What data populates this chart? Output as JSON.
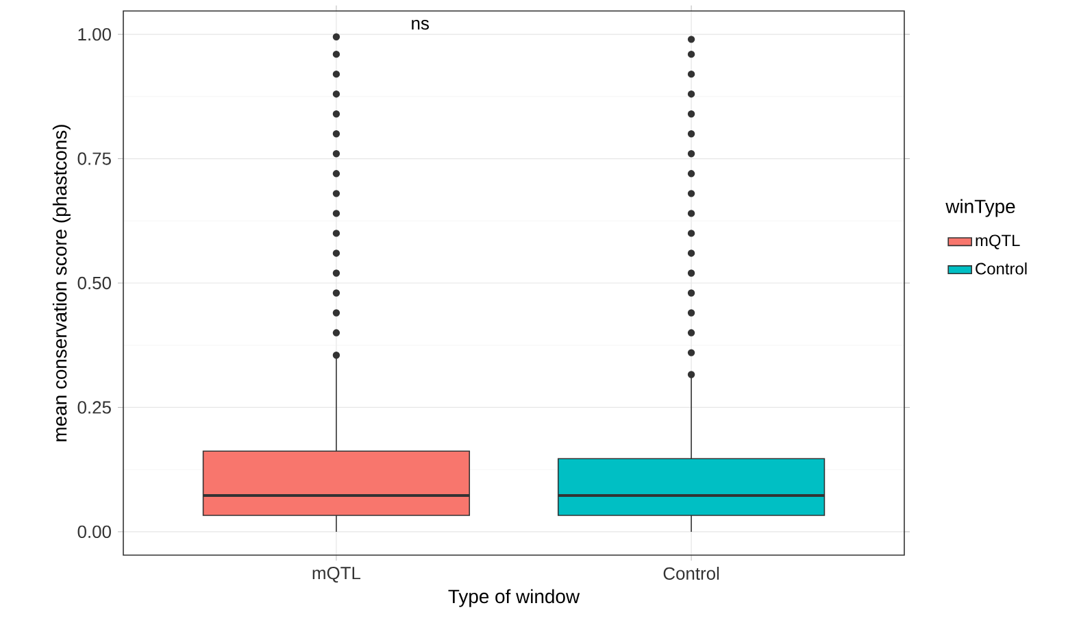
{
  "chart_data": {
    "type": "box",
    "xlabel": "Type of window",
    "ylabel": "mean conservation score (phastcons)",
    "categories": [
      "mQTL",
      "Control"
    ],
    "series": [
      {
        "name": "mQTL",
        "color": "#f8766d",
        "boxes": [
          {
            "low": 0,
            "q1": 0.033,
            "median": 0.073,
            "q3": 0.162,
            "high": 0.35,
            "outliers": [
              0.355,
              0.4,
              0.44,
              0.48,
              0.52,
              0.56,
              0.6,
              0.64,
              0.68,
              0.72,
              0.76,
              0.8,
              0.84,
              0.88,
              0.92,
              0.96,
              0.995
            ]
          },
          null
        ]
      },
      {
        "name": "Control",
        "color": "#00bfc4",
        "boxes": [
          null,
          {
            "low": 0,
            "q1": 0.033,
            "median": 0.073,
            "q3": 0.147,
            "high": 0.31,
            "outliers": [
              0.316,
              0.36,
              0.4,
              0.44,
              0.48,
              0.52,
              0.56,
              0.6,
              0.64,
              0.68,
              0.72,
              0.76,
              0.8,
              0.84,
              0.88,
              0.92,
              0.96,
              0.99
            ]
          }
        ]
      }
    ],
    "ylim": [
      -0.047,
      1.047
    ],
    "yticks": [
      {
        "value": 0,
        "label": "0.00"
      },
      {
        "value": 0.25,
        "label": "0.25"
      },
      {
        "value": 0.5,
        "label": "0.50"
      },
      {
        "value": 0.75,
        "label": "0.75"
      },
      {
        "value": 1,
        "label": "1.00"
      }
    ],
    "grid": true,
    "legend": "right",
    "legend_title": "winType",
    "annotations": [
      "ns"
    ]
  }
}
